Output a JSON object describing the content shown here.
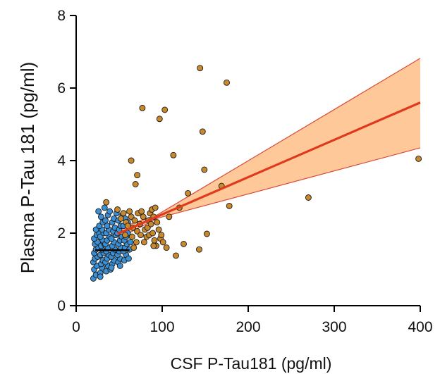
{
  "chart_data": {
    "type": "scatter",
    "title": "",
    "xlabel": "CSF P-Tau181 (pg/ml)",
    "ylabel": "Plasma P-Tau 181 (pg/ml)",
    "xlim": [
      0,
      400
    ],
    "ylim": [
      0,
      8
    ],
    "xticks": [
      0,
      100,
      200,
      300,
      400
    ],
    "yticks": [
      0,
      2,
      4,
      6,
      8
    ],
    "xtick_labels": [
      "0",
      "100",
      "200",
      "300",
      "400"
    ],
    "ytick_labels": [
      "0",
      "2",
      "4",
      "6",
      "8"
    ],
    "grid": false,
    "legend": "none",
    "colors": {
      "low_group": "#3b8fd4",
      "high_group": "#c8882c",
      "fit_line": "#e03a1e",
      "ci_band": "#ffc898",
      "ci_edge": "#d94a3a",
      "median_bar": "#000000"
    },
    "fit": {
      "x": [
        48,
        400
      ],
      "y": [
        1.98,
        5.6
      ],
      "ci_upper_end": 6.82,
      "ci_lower_end": 4.35
    },
    "median_bar": {
      "x": [
        22,
        62
      ],
      "y": 1.53
    },
    "series": [
      {
        "color": "#3b8fd4",
        "points": [
          [
            20,
            0.75
          ],
          [
            23,
            0.85
          ],
          [
            21,
            1.0
          ],
          [
            24,
            1.1
          ],
          [
            20,
            1.2
          ],
          [
            22,
            1.3
          ],
          [
            25,
            1.35
          ],
          [
            21,
            1.45
          ],
          [
            23,
            1.55
          ],
          [
            26,
            1.6
          ],
          [
            22,
            1.7
          ],
          [
            25,
            1.75
          ],
          [
            21,
            1.85
          ],
          [
            24,
            1.95
          ],
          [
            27,
            2.0
          ],
          [
            23,
            2.1
          ],
          [
            28,
            0.9
          ],
          [
            30,
            1.05
          ],
          [
            29,
            1.15
          ],
          [
            31,
            1.25
          ],
          [
            28,
            1.4
          ],
          [
            32,
            1.45
          ],
          [
            30,
            1.55
          ],
          [
            29,
            1.65
          ],
          [
            33,
            1.7
          ],
          [
            31,
            1.8
          ],
          [
            28,
            1.9
          ],
          [
            32,
            2.0
          ],
          [
            30,
            2.1
          ],
          [
            27,
            2.2
          ],
          [
            31,
            2.3
          ],
          [
            29,
            2.45
          ],
          [
            26,
            2.6
          ],
          [
            28,
            0.8
          ],
          [
            35,
            0.95
          ],
          [
            37,
            1.1
          ],
          [
            34,
            1.2
          ],
          [
            36,
            1.3
          ],
          [
            38,
            1.4
          ],
          [
            35,
            1.5
          ],
          [
            37,
            1.6
          ],
          [
            34,
            1.7
          ],
          [
            36,
            1.8
          ],
          [
            39,
            1.9
          ],
          [
            35,
            2.0
          ],
          [
            38,
            2.1
          ],
          [
            36,
            2.2
          ],
          [
            34,
            2.35
          ],
          [
            37,
            2.5
          ],
          [
            39,
            2.6
          ],
          [
            33,
            2.7
          ],
          [
            40,
            1.0
          ],
          [
            42,
            1.15
          ],
          [
            44,
            1.25
          ],
          [
            41,
            1.35
          ],
          [
            43,
            1.45
          ],
          [
            45,
            1.55
          ],
          [
            42,
            1.65
          ],
          [
            44,
            1.75
          ],
          [
            41,
            1.85
          ],
          [
            46,
            1.95
          ],
          [
            43,
            2.05
          ],
          [
            45,
            2.15
          ],
          [
            42,
            2.3
          ],
          [
            44,
            2.4
          ],
          [
            47,
            2.55
          ],
          [
            41,
            1.05
          ],
          [
            49,
            1.2
          ],
          [
            51,
            1.3
          ],
          [
            48,
            1.4
          ],
          [
            50,
            1.5
          ],
          [
            52,
            1.6
          ],
          [
            49,
            1.7
          ],
          [
            51,
            1.8
          ],
          [
            53,
            1.9
          ],
          [
            48,
            2.0
          ],
          [
            50,
            2.1
          ],
          [
            52,
            2.2
          ],
          [
            49,
            2.35
          ],
          [
            54,
            2.5
          ],
          [
            51,
            1.1
          ],
          [
            56,
            1.25
          ],
          [
            58,
            1.4
          ],
          [
            55,
            1.5
          ],
          [
            57,
            1.6
          ],
          [
            59,
            1.7
          ],
          [
            56,
            1.8
          ],
          [
            58,
            1.9
          ],
          [
            60,
            2.0
          ],
          [
            55,
            2.2
          ],
          [
            57,
            2.4
          ],
          [
            62,
            1.55
          ],
          [
            61,
            1.3
          ],
          [
            63,
            1.75
          ],
          [
            60,
            2.3
          ]
        ]
      },
      {
        "color": "#c8882c",
        "points": [
          [
            35,
            2.85
          ],
          [
            48,
            2.65
          ],
          [
            55,
            2.55
          ],
          [
            52,
            2.4
          ],
          [
            58,
            2.3
          ],
          [
            60,
            2.2
          ],
          [
            57,
            1.95
          ],
          [
            64,
            2.45
          ],
          [
            62,
            2.6
          ],
          [
            66,
            2.15
          ],
          [
            68,
            2.35
          ],
          [
            65,
            1.9
          ],
          [
            70,
            1.75
          ],
          [
            67,
            1.6
          ],
          [
            72,
            2.55
          ],
          [
            74,
            2.25
          ],
          [
            71,
            2.05
          ],
          [
            75,
            1.95
          ],
          [
            78,
            2.45
          ],
          [
            76,
            2.6
          ],
          [
            80,
            2.1
          ],
          [
            82,
            1.9
          ],
          [
            79,
            1.75
          ],
          [
            84,
            2.35
          ],
          [
            86,
            2.55
          ],
          [
            83,
            2.15
          ],
          [
            88,
            2.65
          ],
          [
            85,
            1.95
          ],
          [
            90,
            2.45
          ],
          [
            87,
            2.25
          ],
          [
            92,
            2.7
          ],
          [
            89,
            2.0
          ],
          [
            91,
            1.8
          ],
          [
            94,
            2.3
          ],
          [
            93,
            1.65
          ],
          [
            96,
            2.1
          ],
          [
            98,
            1.85
          ],
          [
            101,
            1.75
          ],
          [
            99,
            1.95
          ],
          [
            105,
            1.6
          ],
          [
            90,
            1.65
          ],
          [
            116,
            1.38
          ],
          [
            64,
            4.0
          ],
          [
            69,
            3.35
          ],
          [
            71,
            3.6
          ],
          [
            77,
            5.45
          ],
          [
            97,
            5.15
          ],
          [
            103,
            5.4
          ],
          [
            113,
            4.15
          ],
          [
            130,
            3.1
          ],
          [
            147,
            4.8
          ],
          [
            149,
            3.75
          ],
          [
            144,
            6.55
          ],
          [
            175,
            6.15
          ],
          [
            169,
            3.3
          ],
          [
            178,
            2.75
          ],
          [
            152,
            1.98
          ],
          [
            143,
            1.55
          ],
          [
            125,
            1.7
          ],
          [
            108,
            2.45
          ],
          [
            120,
            2.7
          ],
          [
            270,
            2.98
          ],
          [
            398,
            4.05
          ]
        ]
      }
    ]
  }
}
